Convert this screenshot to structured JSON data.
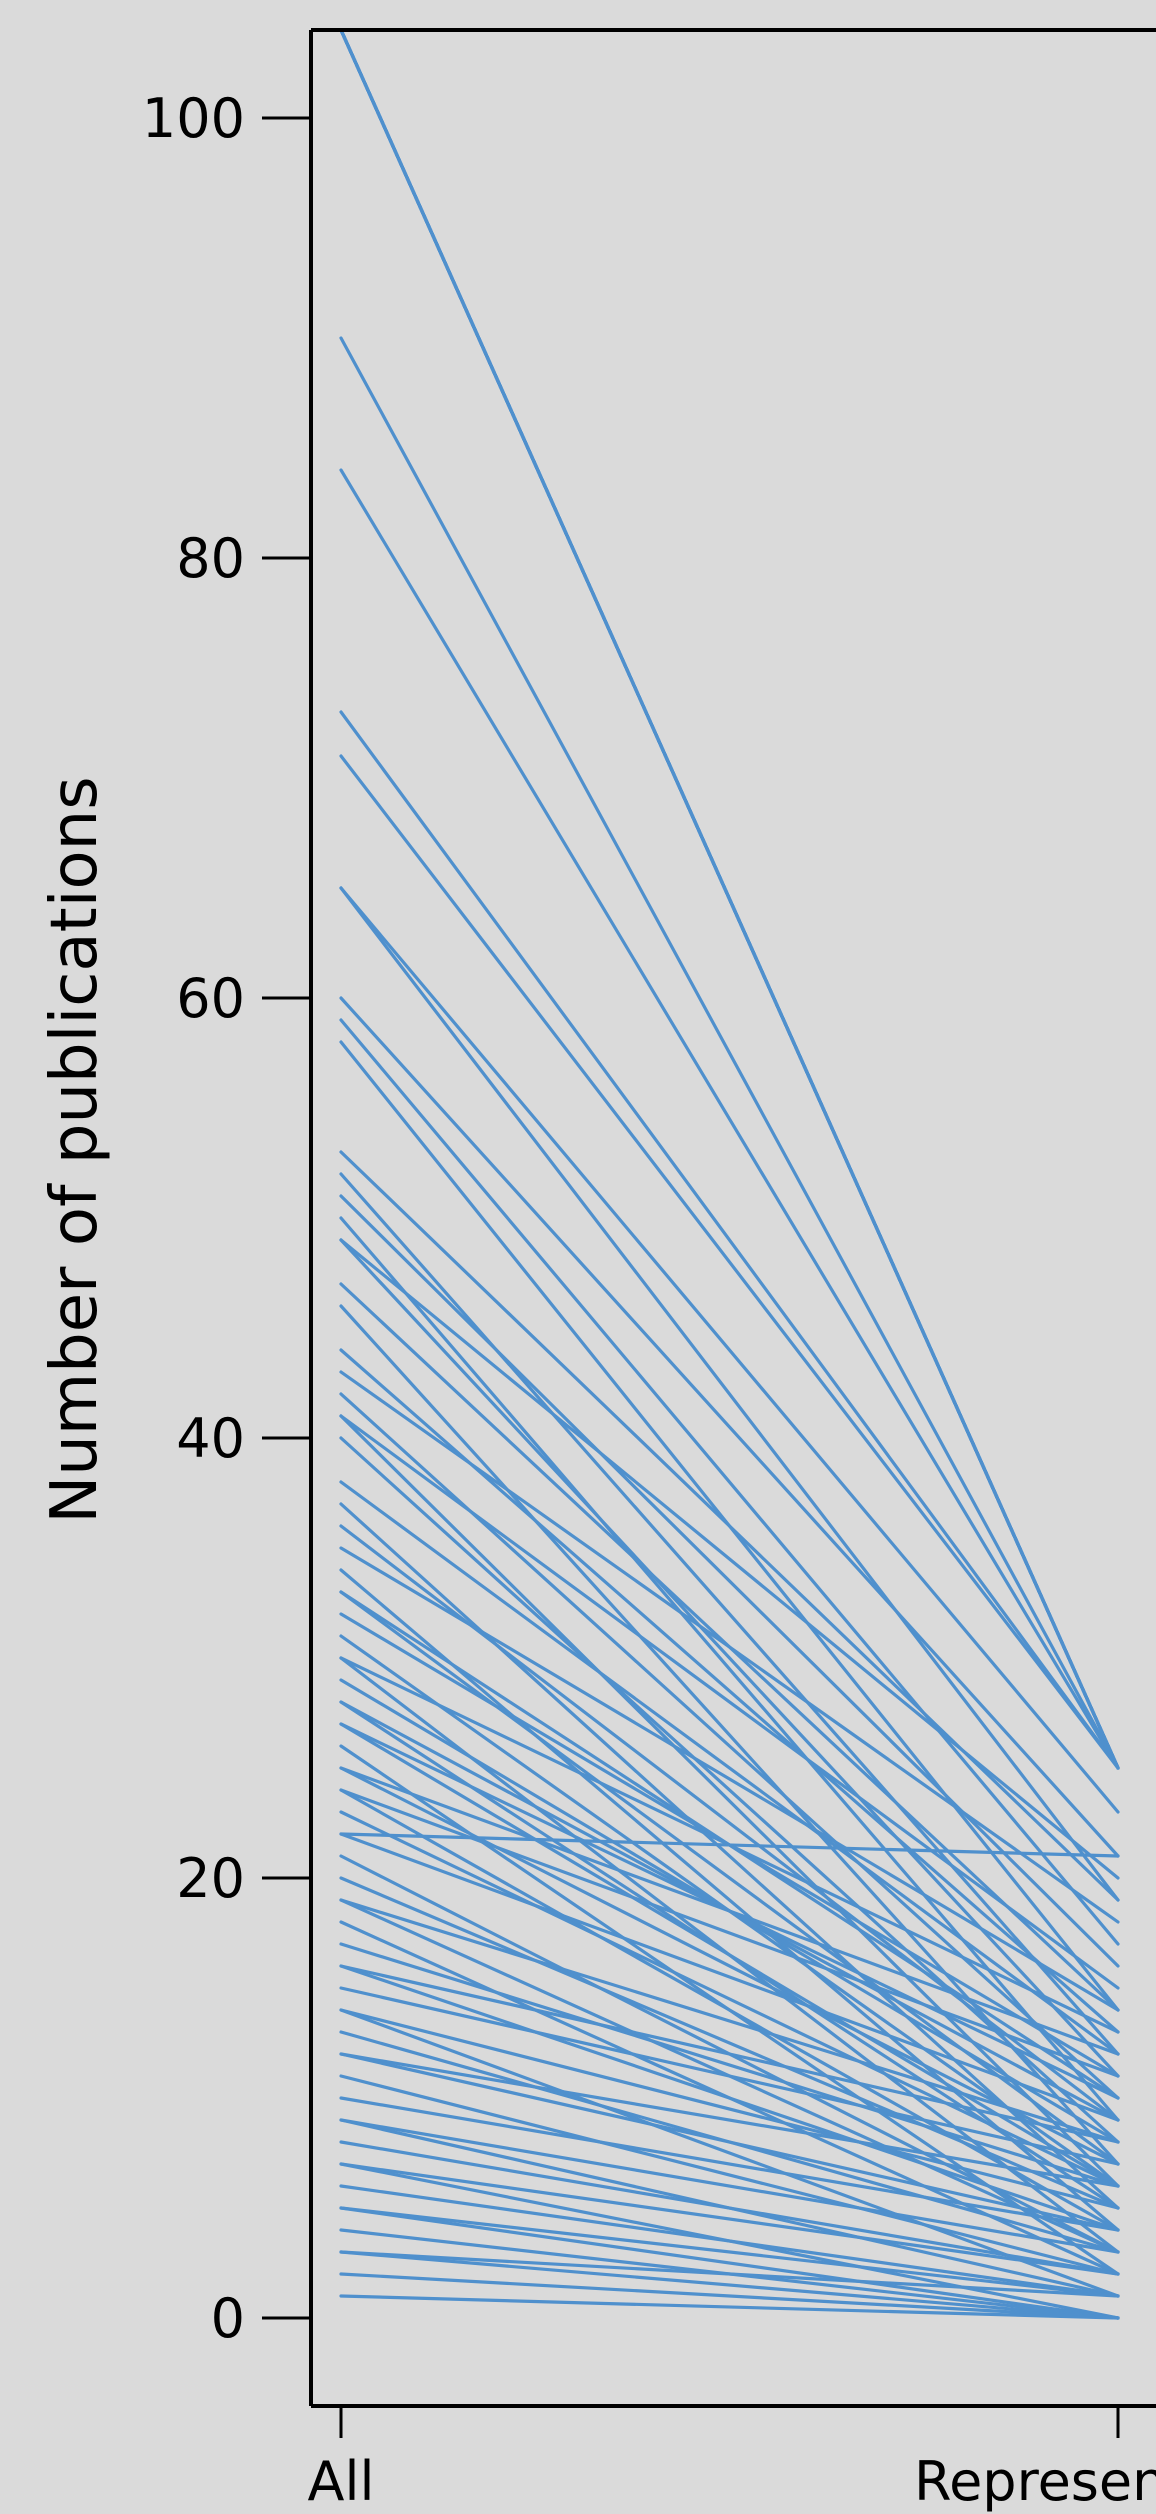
{
  "chart_data": {
    "type": "line",
    "title": "",
    "xlabel": "",
    "ylabel": "Number of publications",
    "categories": [
      "All",
      "Representative"
    ],
    "ylim": [
      -4,
      104
    ],
    "yticks": [
      0,
      20,
      40,
      60,
      80,
      100
    ],
    "grid": false,
    "legend": "none",
    "line_color": "#4f90cd",
    "background_color": "#dadada",
    "series": [
      {
        "values": [
          104,
          25
        ]
      },
      {
        "values": [
          104,
          25
        ]
      },
      {
        "values": [
          104,
          25
        ]
      },
      {
        "values": [
          104,
          25
        ]
      },
      {
        "values": [
          104,
          25
        ]
      },
      {
        "values": [
          104,
          25
        ]
      },
      {
        "values": [
          104,
          25
        ]
      },
      {
        "values": [
          104,
          25
        ]
      },
      {
        "values": [
          104,
          25
        ]
      },
      {
        "values": [
          104,
          25
        ]
      },
      {
        "values": [
          104,
          25
        ]
      },
      {
        "values": [
          104,
          25
        ]
      },
      {
        "values": [
          104,
          25
        ]
      },
      {
        "values": [
          104,
          25
        ]
      },
      {
        "values": [
          90,
          25
        ]
      },
      {
        "values": [
          84,
          25
        ]
      },
      {
        "values": [
          73,
          25
        ]
      },
      {
        "values": [
          71,
          25
        ]
      },
      {
        "values": [
          65,
          23
        ]
      },
      {
        "values": [
          65,
          19
        ]
      },
      {
        "values": [
          60,
          21
        ]
      },
      {
        "values": [
          59,
          17
        ]
      },
      {
        "values": [
          58,
          14
        ]
      },
      {
        "values": [
          53,
          19
        ]
      },
      {
        "values": [
          52,
          12
        ]
      },
      {
        "values": [
          51,
          16
        ]
      },
      {
        "values": [
          50,
          9
        ]
      },
      {
        "values": [
          49,
          20
        ]
      },
      {
        "values": [
          49,
          11
        ]
      },
      {
        "values": [
          47,
          14
        ]
      },
      {
        "values": [
          46,
          7
        ]
      },
      {
        "values": [
          44,
          13
        ]
      },
      {
        "values": [
          43,
          18
        ]
      },
      {
        "values": [
          42,
          10
        ]
      },
      {
        "values": [
          41,
          6
        ]
      },
      {
        "values": [
          41,
          15
        ]
      },
      {
        "values": [
          40,
          8
        ]
      },
      {
        "values": [
          38,
          12
        ]
      },
      {
        "values": [
          37,
          5
        ]
      },
      {
        "values": [
          36,
          9
        ]
      },
      {
        "values": [
          35,
          14
        ]
      },
      {
        "values": [
          34,
          4
        ]
      },
      {
        "values": [
          33,
          7
        ]
      },
      {
        "values": [
          32,
          11
        ]
      },
      {
        "values": [
          31,
          6
        ]
      },
      {
        "values": [
          30,
          3
        ]
      },
      {
        "values": [
          30,
          13
        ]
      },
      {
        "values": [
          29,
          8
        ]
      },
      {
        "values": [
          28,
          5
        ]
      },
      {
        "values": [
          27,
          10
        ]
      },
      {
        "values": [
          26,
          2
        ]
      },
      {
        "values": [
          25,
          7
        ]
      },
      {
        "values": [
          25,
          12
        ]
      },
      {
        "values": [
          24,
          4
        ]
      },
      {
        "values": [
          23,
          6
        ]
      },
      {
        "values": [
          22,
          21
        ]
      },
      {
        "values": [
          22,
          9
        ]
      },
      {
        "values": [
          21,
          3
        ]
      },
      {
        "values": [
          20,
          5
        ]
      },
      {
        "values": [
          19,
          8
        ]
      },
      {
        "values": [
          18,
          2
        ]
      },
      {
        "values": [
          17,
          6
        ]
      },
      {
        "values": [
          16,
          4
        ]
      },
      {
        "values": [
          15,
          7
        ]
      },
      {
        "values": [
          14,
          1
        ]
      },
      {
        "values": [
          14,
          5
        ]
      },
      {
        "values": [
          13,
          3
        ]
      },
      {
        "values": [
          12,
          6
        ]
      },
      {
        "values": [
          11,
          2
        ]
      },
      {
        "values": [
          10,
          4
        ]
      },
      {
        "values": [
          9,
          1
        ]
      },
      {
        "values": [
          9,
          3
        ]
      },
      {
        "values": [
          8,
          2
        ]
      },
      {
        "values": [
          7,
          0
        ]
      },
      {
        "values": [
          7,
          2
        ]
      },
      {
        "values": [
          6,
          1
        ]
      },
      {
        "values": [
          5,
          0
        ]
      },
      {
        "values": [
          5,
          1
        ]
      },
      {
        "values": [
          4,
          0
        ]
      },
      {
        "values": [
          3,
          1
        ]
      },
      {
        "values": [
          3,
          0
        ]
      },
      {
        "values": [
          2,
          0
        ]
      },
      {
        "values": [
          1,
          0
        ]
      },
      {
        "values": [
          28,
          9
        ]
      },
      {
        "values": [
          24,
          11
        ]
      },
      {
        "values": [
          33,
          10
        ]
      },
      {
        "values": [
          19,
          3
        ]
      },
      {
        "values": [
          16,
          8
        ]
      },
      {
        "values": [
          12,
          4
        ]
      },
      {
        "values": [
          27,
          6
        ]
      }
    ]
  }
}
